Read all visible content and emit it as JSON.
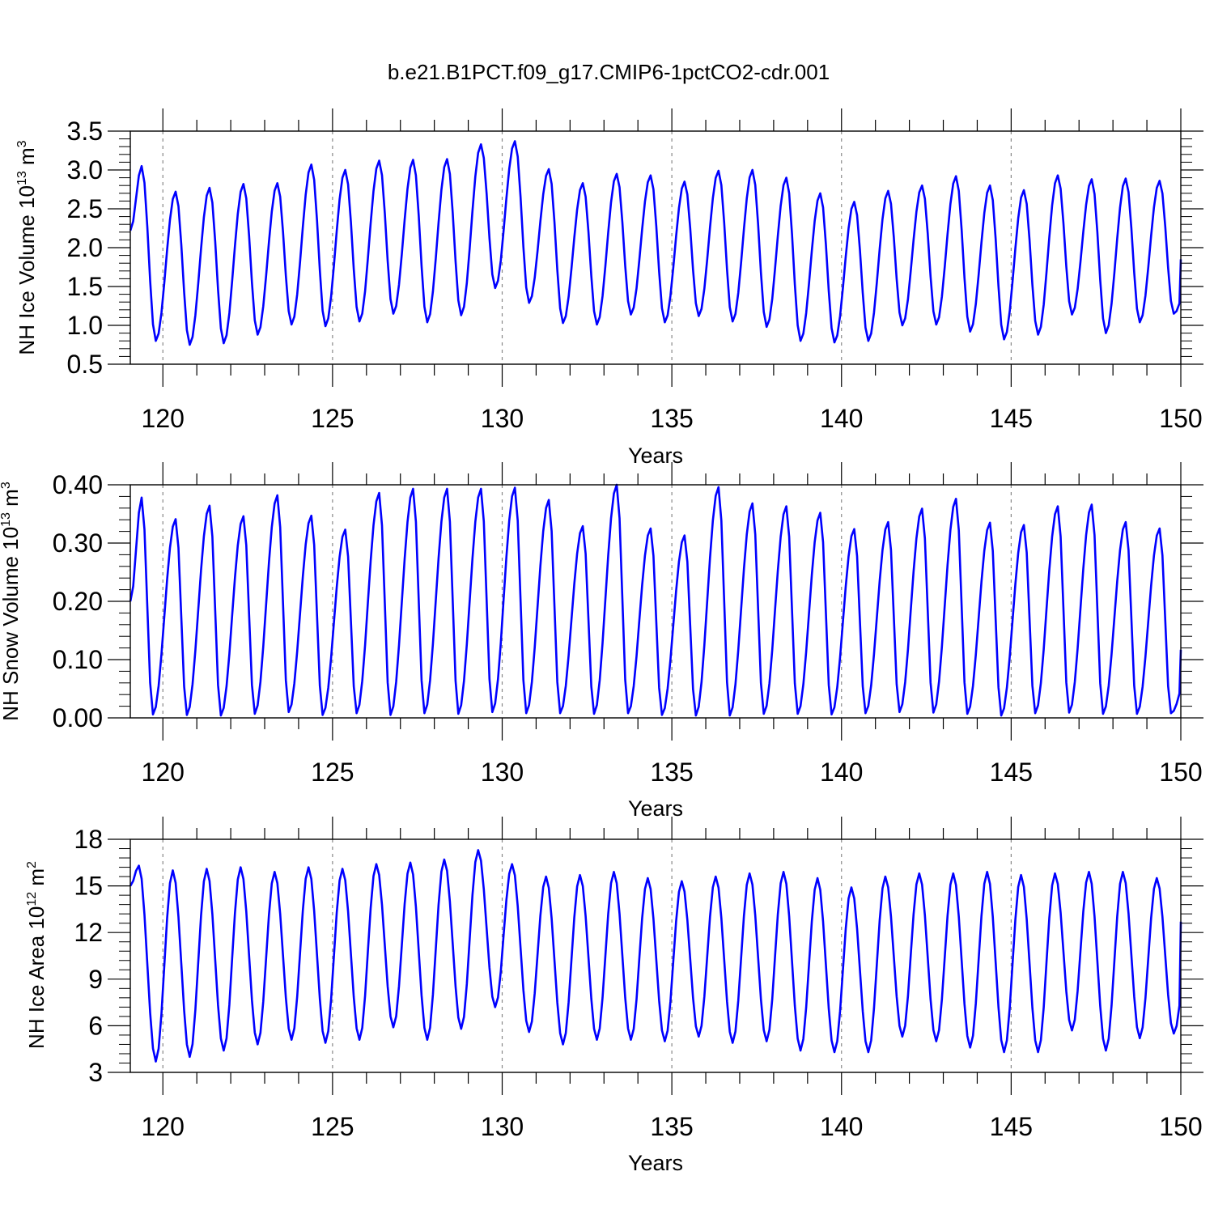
{
  "figure_title": "b.e21.B1PCT.f09_g17.CMIP6-1pctCO2-cdr.001",
  "colors": {
    "series": "#0000ff",
    "axis": "#000000",
    "ref_line": "#888888"
  },
  "chart_data": [
    {
      "type": "line",
      "ylabel_main": "NH Ice Volume 10",
      "ylabel_exp": "13",
      "ylabel_unit": " m",
      "ylabel_unit_exp": "3",
      "xlabel": "Years",
      "xlim": [
        119.04,
        150.0
      ],
      "ylim": [
        0.5,
        3.5
      ],
      "xticks": [
        120,
        125,
        130,
        135,
        140,
        145,
        150
      ],
      "xtick_labels": [
        "120",
        "125",
        "130",
        "135",
        "140",
        "145",
        "150"
      ],
      "yticks": [
        0.5,
        1.0,
        1.5,
        2.0,
        2.5,
        3.0,
        3.5
      ],
      "ytick_labels": [
        "0.5",
        "1.0",
        "1.5",
        "2.0",
        "2.5",
        "3.0",
        "3.5"
      ],
      "ref_lines_x": [
        120,
        125,
        130,
        135,
        140,
        145
      ],
      "annual_max": [
        3.05,
        2.72,
        2.77,
        2.82,
        2.83,
        3.07,
        3.0,
        3.12,
        3.13,
        3.14,
        3.33,
        3.37,
        3.01,
        2.83,
        2.95,
        2.93,
        2.85,
        2.99,
        3.0,
        2.9,
        2.7,
        2.59,
        2.73,
        2.8,
        2.92,
        2.8,
        2.74,
        2.93,
        2.88,
        2.89,
        2.86
      ],
      "annual_min": [
        0.8,
        0.75,
        0.77,
        0.88,
        1.01,
        0.99,
        1.05,
        1.15,
        1.04,
        1.13,
        1.48,
        1.29,
        1.03,
        1.01,
        1.14,
        1.04,
        1.12,
        1.05,
        0.98,
        0.8,
        0.78,
        0.8,
        1.0,
        1.01,
        0.92,
        0.82,
        0.88,
        1.14,
        0.9,
        1.04,
        1.15
      ],
      "start_value": 2.22,
      "end_value": 1.85,
      "peak_month": 4,
      "trough_month": 9
    },
    {
      "type": "line",
      "ylabel_main": "NH Snow Volume 10",
      "ylabel_exp": "13",
      "ylabel_unit": " m",
      "ylabel_unit_exp": "3",
      "xlabel": "Years",
      "xlim": [
        119.04,
        150.0
      ],
      "ylim": [
        0.0,
        0.4
      ],
      "xticks": [
        120,
        125,
        130,
        135,
        140,
        145,
        150
      ],
      "xtick_labels": [
        "120",
        "125",
        "130",
        "135",
        "140",
        "145",
        "150"
      ],
      "yticks": [
        0.0,
        0.1,
        0.2,
        0.3,
        0.4
      ],
      "ytick_labels": [
        "0.00",
        "0.10",
        "0.20",
        "0.30",
        "0.40"
      ],
      "ref_lines_x": [
        120,
        125,
        130,
        135,
        140,
        145
      ],
      "annual_max": [
        0.378,
        0.341,
        0.364,
        0.346,
        0.382,
        0.347,
        0.323,
        0.386,
        0.393,
        0.393,
        0.393,
        0.395,
        0.374,
        0.329,
        0.4,
        0.325,
        0.313,
        0.396,
        0.368,
        0.363,
        0.352,
        0.324,
        0.336,
        0.359,
        0.376,
        0.335,
        0.331,
        0.363,
        0.366,
        0.336,
        0.325
      ],
      "annual_min": [
        0.006,
        0.005,
        0.004,
        0.007,
        0.01,
        0.005,
        0.008,
        0.005,
        0.008,
        0.007,
        0.01,
        0.008,
        0.008,
        0.007,
        0.008,
        0.005,
        0.004,
        0.004,
        0.007,
        0.007,
        0.006,
        0.008,
        0.01,
        0.009,
        0.007,
        0.004,
        0.008,
        0.009,
        0.007,
        0.007,
        0.008
      ],
      "start_value": 0.2,
      "end_value": 0.117,
      "peak_month": 4,
      "trough_month": 8
    },
    {
      "type": "line",
      "ylabel_main": "NH Ice Area 10",
      "ylabel_exp": "12",
      "ylabel_unit": " m",
      "ylabel_unit_exp": "2",
      "xlabel": "Years",
      "xlim": [
        119.04,
        150.0
      ],
      "ylim": [
        3,
        18
      ],
      "xticks": [
        120,
        125,
        130,
        135,
        140,
        145,
        150
      ],
      "xtick_labels": [
        "120",
        "125",
        "130",
        "135",
        "140",
        "145",
        "150"
      ],
      "yticks": [
        3,
        6,
        9,
        12,
        15,
        18
      ],
      "ytick_labels": [
        "3",
        "6",
        "9",
        "12",
        "15",
        "18"
      ],
      "ref_lines_x": [
        120,
        125,
        130,
        135,
        140,
        145
      ],
      "annual_max": [
        16.3,
        16.0,
        16.1,
        16.2,
        15.9,
        16.2,
        16.1,
        16.4,
        16.5,
        16.7,
        17.3,
        16.4,
        15.6,
        15.7,
        15.9,
        15.5,
        15.3,
        15.6,
        15.8,
        15.9,
        15.5,
        14.9,
        15.6,
        15.8,
        15.8,
        15.9,
        15.7,
        15.8,
        15.9,
        15.9,
        15.5
      ],
      "annual_min": [
        3.7,
        4.0,
        4.4,
        4.8,
        5.1,
        4.9,
        5.1,
        5.9,
        5.1,
        5.8,
        7.2,
        5.6,
        4.8,
        5.1,
        5.1,
        5.0,
        5.3,
        4.9,
        5.0,
        4.4,
        4.3,
        4.3,
        5.3,
        5.0,
        4.6,
        4.3,
        4.3,
        5.7,
        4.4,
        5.2,
        5.5
      ],
      "start_value": 15.0,
      "end_value": 12.7,
      "peak_month": 3,
      "trough_month": 9
    }
  ]
}
